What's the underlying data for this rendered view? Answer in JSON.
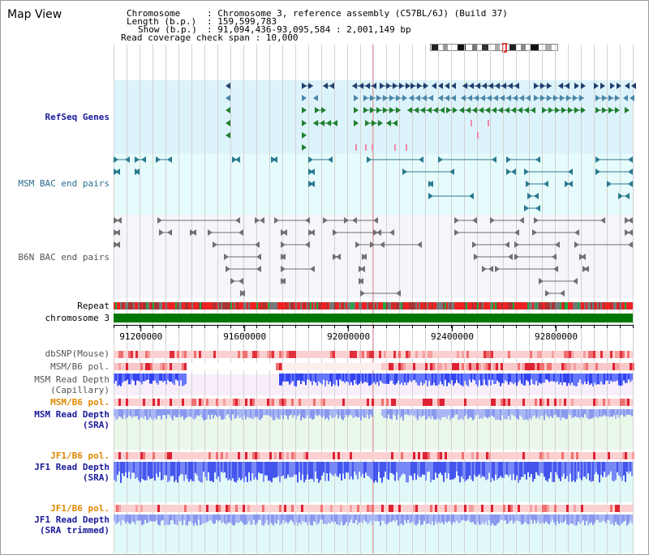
{
  "title": "Map View",
  "info": {
    "chromosome_label": "Chromosome",
    "chromosome_value": ": Chromosome 3, reference assembly (C57BL/6J) (Build 37)",
    "length_label": "Length (b.p.)",
    "length_value": ": 159,599,783",
    "show_label": "Show (b.p.)",
    "show_value": ": 91,094,436-93,095,584 : 2,001,149 bp",
    "coverage_text": "Read coverage check span : 10,000"
  },
  "tracks": {
    "refseq": "RefSeq Genes",
    "msm_bac": "MSM BAC end pairs",
    "b6n_bac": "B6N BAC end pairs",
    "repeat": "Repeat",
    "chromosome": "chromosome 3",
    "dbsnp": "dbSNP(Mouse)",
    "msm_b6_pol_1": "MSM/B6 pol.",
    "msm_read_depth_cap_1": "MSM Read Depth",
    "msm_read_depth_cap_2": "(Capillary)",
    "msm_b6_pol_2": "MSM/B6 pol.",
    "msm_read_depth_sra_1": "MSM Read Depth",
    "msm_read_depth_sra_2": "(SRA)",
    "jf1_b6_pol_1": "JF1/B6 pol.",
    "jf1_read_depth_sra_1": "JF1 Read Depth",
    "jf1_read_depth_sra_2": "(SRA)",
    "jf1_b6_pol_2": "JF1/B6 pol.",
    "jf1_read_depth_trim_1": "JF1 Read Depth",
    "jf1_read_depth_trim_2": "(SRA trimmed)"
  },
  "axis": {
    "range": [
      91094436,
      93095584
    ],
    "ticks": [
      91200000,
      91600000,
      92000000,
      92400000,
      92800000
    ],
    "tick_labels": [
      "91200000",
      "91600000",
      "92000000",
      "92400000",
      "92800000"
    ]
  },
  "colors": {
    "refseq_bg": "#ddf3fb",
    "msm_bg": "#e6fbfb",
    "b6n_bg": "#f5f5fa",
    "gene_navy": "#1f3f6f",
    "gene_steel": "#4a86a8",
    "gene_green": "#1f7f2f",
    "msm_feature": "#2a7a90",
    "b6n_feature": "#707070",
    "label_navy": "#1a1a99",
    "label_orange": "#dd8800",
    "label_gray": "#555555",
    "chromosome_bar": "#007700",
    "snp_red": "#e0303a",
    "depth_blue": "#4455ee"
  }
}
